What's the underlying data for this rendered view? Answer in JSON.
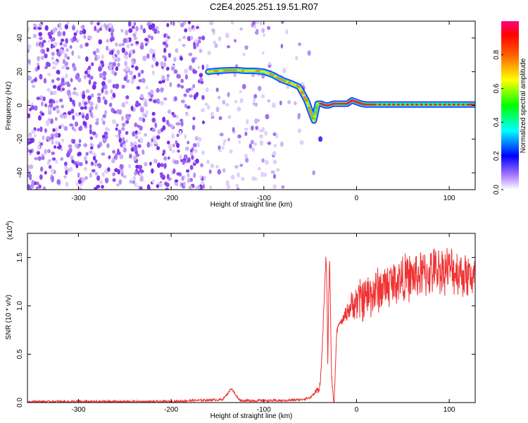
{
  "title": "C2E4.2025.251.19.51.R07",
  "chart_data": [
    {
      "type": "heatmap",
      "xlabel": "Height of straight line (km)",
      "ylabel": "Frequency (Hz)",
      "xlim": [
        -355,
        128
      ],
      "ylim": [
        -50,
        50
      ],
      "xticks": [
        -300,
        -200,
        -100,
        0,
        100
      ],
      "yticks": [
        -40,
        -20,
        0,
        20,
        40
      ],
      "grid": false,
      "colorbar": {
        "label": "Normalized spectral amplitude",
        "range": [
          0,
          1
        ],
        "ticks": [
          "0.0",
          "0.2",
          "0.4",
          "0.6",
          "0.8"
        ],
        "colormap": [
          "#ffffff",
          "#8040ff",
          "#0000ff",
          "#00ffff",
          "#00ff00",
          "#ffff00",
          "#ff8000",
          "#ff0000",
          "#ff00ff"
        ]
      },
      "ridge": {
        "name": "dominant frequency",
        "x": [
          -160,
          -150,
          -140,
          -130,
          -120,
          -110,
          -100,
          -90,
          -80,
          -70,
          -62,
          -58,
          -54,
          -50,
          -46,
          -42,
          -38,
          -34,
          -30,
          -25,
          -20,
          -10,
          -5,
          0,
          5,
          10,
          20,
          40,
          60,
          80,
          100,
          120,
          128
        ],
        "y": [
          20,
          20.5,
          20.8,
          21,
          20.5,
          20.5,
          20,
          18,
          15,
          13,
          11,
          7,
          3,
          -3,
          -9,
          1,
          1,
          0,
          0,
          1,
          1,
          1,
          3,
          2,
          1,
          0.5,
          0.5,
          0.5,
          0.5,
          0.5,
          0.5,
          0.5,
          0.5
        ]
      },
      "noise_region_x": [
        -355,
        -75
      ],
      "isolated_blob": {
        "x": -39,
        "y": -20
      }
    },
    {
      "type": "line",
      "xlabel": "Height of straight line (km)",
      "ylabel": "SNR (10 * v/v)",
      "multiplier": "(x10",
      "multiplier_exp": "4",
      "multiplier_close": ")",
      "xlim": [
        -355,
        128
      ],
      "ylim": [
        0,
        1.75
      ],
      "xticks": [
        -300,
        -200,
        -100,
        0,
        100
      ],
      "yticks": [
        "0.0",
        "0.5",
        "1.0",
        "1.5"
      ],
      "color": "#ef3333",
      "series": [
        {
          "x": [
            -355,
            -300,
            -250,
            -200,
            -180,
            -145,
            -140,
            -135,
            -130,
            -125,
            -100,
            -80,
            -60,
            -50,
            -45,
            -40,
            -38,
            -36,
            -34,
            -33,
            -32,
            -31,
            -30,
            -29,
            -28,
            -27,
            -26,
            -25,
            -24,
            -23,
            -22,
            -21,
            -20,
            -15,
            -10,
            -5,
            0,
            10,
            20,
            30,
            40,
            50,
            60,
            70,
            80,
            90,
            100,
            110,
            120,
            128
          ],
          "values": [
            0.01,
            0.01,
            0.01,
            0.01,
            0.02,
            0.03,
            0.08,
            0.15,
            0.07,
            0.02,
            0.02,
            0.02,
            0.03,
            0.05,
            0.1,
            0.15,
            0.35,
            0.8,
            1.25,
            1.55,
            1.2,
            0.4,
            1.1,
            1.5,
            0.9,
            0.3,
            0.15,
            0.05,
            0.02,
            0.3,
            0.6,
            0.75,
            0.8,
            0.85,
            0.95,
            1.0,
            1.05,
            1.1,
            1.15,
            1.2,
            1.25,
            1.28,
            1.3,
            1.32,
            1.35,
            1.38,
            1.38,
            1.35,
            1.32,
            1.3
          ]
        }
      ]
    }
  ]
}
